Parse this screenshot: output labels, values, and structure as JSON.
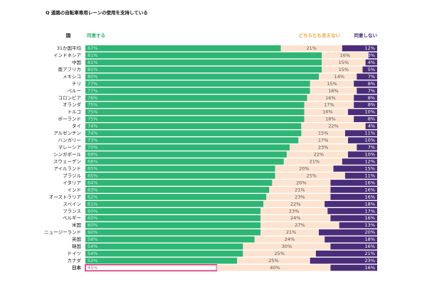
{
  "chart_data": {
    "type": "stacked-bar-100",
    "title": "Q 道路の自転車専用レーンの使用を支持している",
    "category_header": "国",
    "categories": [
      "31か国平均",
      "インドネシア",
      "中国",
      "南アフリカ",
      "メキシコ",
      "チリ",
      "ペルー",
      "コロンビア",
      "オランダ",
      "トルコ",
      "ポーランド",
      "タイ",
      "アルゼンチン",
      "ハンガリー",
      "マレーシア",
      "シンガポール",
      "スウェーデン",
      "アイルランド",
      "ブラジル",
      "イタリア",
      "インド",
      "オーストラリア",
      "スペイン",
      "フランス",
      "ベルギー",
      "米国",
      "ニュージーランド",
      "英国",
      "韓国",
      "ドイツ",
      "カナダ",
      "日本"
    ],
    "highlight": 31,
    "series": [
      {
        "name": "同意する",
        "color": "#2fb574",
        "values": [
          67,
          81,
          81,
          81,
          80,
          77,
          77,
          76,
          75,
          75,
          75,
          74,
          74,
          73,
          70,
          69,
          68,
          65,
          65,
          64,
          63,
          62,
          61,
          60,
          60,
          60,
          60,
          58,
          54,
          54,
          52,
          45
        ],
        "value_labels": [
          "67%",
          "81%",
          "81%",
          "81%",
          "80%",
          "77%",
          "77%",
          "76%",
          "75%",
          "75%",
          "75%",
          "74%",
          "74%",
          "73%",
          "70%",
          "69%",
          "68%",
          "65%",
          "65%",
          "64%",
          "63%",
          "62%",
          "61%",
          "60%",
          "60%",
          "60%",
          "60%",
          "58%",
          "54%",
          "54%",
          "52%",
          "45%"
        ]
      },
      {
        "name": "どちらとも言えない",
        "color": "#fde3cf",
        "values": [
          21,
          16,
          15,
          15,
          14,
          15,
          16,
          16,
          17,
          16,
          18,
          22,
          15,
          17,
          23,
          22,
          21,
          20,
          25,
          20,
          21,
          23,
          22,
          23,
          24,
          27,
          21,
          24,
          30,
          25,
          25,
          40
        ],
        "value_labels": [
          "21%",
          "16%",
          "15%",
          "15%",
          "14%",
          "15%",
          "16%",
          "16%",
          "17%",
          "16%",
          "18%",
          "22%",
          "15%",
          "17%",
          "23%",
          "22%",
          "21%",
          "20%",
          "25%",
          "20%",
          "21%",
          "23%",
          "22%",
          "23%",
          "24%",
          "27%",
          "21%",
          "24%",
          "30%",
          "25%",
          "25%",
          "40%"
        ]
      },
      {
        "name": "同意しない",
        "color": "#4a2d78",
        "values": [
          12,
          3,
          4,
          5,
          7,
          8,
          7,
          8,
          8,
          10,
          8,
          4,
          11,
          10,
          7,
          10,
          12,
          15,
          11,
          16,
          16,
          16,
          18,
          17,
          16,
          13,
          20,
          18,
          16,
          21,
          23,
          16
        ],
        "value_labels": [
          "12%",
          "3%",
          "4%",
          "5%",
          "7%",
          "8%",
          "7%",
          "8%",
          "8%",
          "10%",
          "8%",
          "4%",
          "11%",
          "10%",
          "7%",
          "10%",
          "12%",
          "15%",
          "11%",
          "16%",
          "16%",
          "16%",
          "18%",
          "17%",
          "16%",
          "13%",
          "20%",
          "18%",
          "16%",
          "21%",
          "23%",
          "16%"
        ]
      }
    ]
  }
}
